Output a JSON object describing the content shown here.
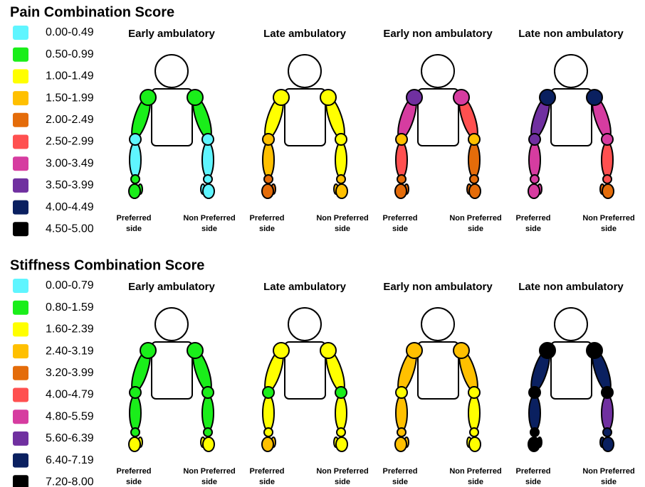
{
  "panels": [
    {
      "title": "Pain Combination Score",
      "legend": [
        {
          "color": "#5ff5ff",
          "label": "0.00-0.49"
        },
        {
          "color": "#1aee1a",
          "label": "0.50-0.99"
        },
        {
          "color": "#ffff00",
          "label": "1.00-1.49"
        },
        {
          "color": "#ffc000",
          "label": "1.50-1.99"
        },
        {
          "color": "#e46c0a",
          "label": "2.00-2.49"
        },
        {
          "color": "#ff5050",
          "label": "2.50-2.99"
        },
        {
          "color": "#d63ca0",
          "label": "3.00-3.49"
        },
        {
          "color": "#7030a0",
          "label": "3.50-3.99"
        },
        {
          "color": "#0a2060",
          "label": "4.00-4.49"
        },
        {
          "color": "#000000",
          "label": "4.50-5.00"
        }
      ],
      "figures": [
        {
          "title": "Early ambulatory",
          "preferred_label": [
            "Preferred",
            "side"
          ],
          "non_preferred_label": [
            "Non Preferred",
            "side"
          ],
          "preferred": {
            "shoulder": "#1aee1a",
            "upper_arm": "#1aee1a",
            "elbow": "#5ff5ff",
            "forearm": "#5ff5ff",
            "wrist": "#1aee1a",
            "hand": "#1aee1a"
          },
          "non_preferred": {
            "shoulder": "#1aee1a",
            "upper_arm": "#1aee1a",
            "elbow": "#5ff5ff",
            "forearm": "#5ff5ff",
            "wrist": "#5ff5ff",
            "hand": "#5ff5ff"
          }
        },
        {
          "title": "Late ambulatory",
          "preferred_label": [
            "Preferred",
            "side"
          ],
          "non_preferred_label": [
            "Non Preferred",
            "side"
          ],
          "preferred": {
            "shoulder": "#ffff00",
            "upper_arm": "#ffff00",
            "elbow": "#ffc000",
            "forearm": "#ffc000",
            "wrist": "#e46c0a",
            "hand": "#e46c0a"
          },
          "non_preferred": {
            "shoulder": "#ffff00",
            "upper_arm": "#ffff00",
            "elbow": "#ffff00",
            "forearm": "#ffff00",
            "wrist": "#ffc000",
            "hand": "#ffc000"
          }
        },
        {
          "title": "Early non ambulatory",
          "preferred_label": [
            "Preferred",
            "side"
          ],
          "non_preferred_label": [
            "Non Preferred",
            "side"
          ],
          "preferred": {
            "shoulder": "#7030a0",
            "upper_arm": "#d63ca0",
            "elbow": "#ffc000",
            "forearm": "#ff5050",
            "wrist": "#e46c0a",
            "hand": "#e46c0a"
          },
          "non_preferred": {
            "shoulder": "#d63ca0",
            "upper_arm": "#ff5050",
            "elbow": "#ffc000",
            "forearm": "#e46c0a",
            "wrist": "#e46c0a",
            "hand": "#e46c0a"
          }
        },
        {
          "title": "Late non ambulatory",
          "preferred_label": [
            "Preferred",
            "side"
          ],
          "non_preferred_label": [
            "Non Preferred",
            "side"
          ],
          "preferred": {
            "shoulder": "#0a2060",
            "upper_arm": "#7030a0",
            "elbow": "#7030a0",
            "forearm": "#d63ca0",
            "wrist": "#d63ca0",
            "hand": "#d63ca0"
          },
          "non_preferred": {
            "shoulder": "#0a2060",
            "upper_arm": "#d63ca0",
            "elbow": "#d63ca0",
            "forearm": "#ff5050",
            "wrist": "#ff5050",
            "hand": "#e46c0a"
          }
        }
      ]
    },
    {
      "title": "Stiffness Combination Score",
      "legend": [
        {
          "color": "#5ff5ff",
          "label": "0.00-0.79"
        },
        {
          "color": "#1aee1a",
          "label": "0.80-1.59"
        },
        {
          "color": "#ffff00",
          "label": "1.60-2.39"
        },
        {
          "color": "#ffc000",
          "label": "2.40-3.19"
        },
        {
          "color": "#e46c0a",
          "label": "3.20-3.99"
        },
        {
          "color": "#ff5050",
          "label": "4.00-4.79"
        },
        {
          "color": "#d63ca0",
          "label": "4.80-5.59"
        },
        {
          "color": "#7030a0",
          "label": "5.60-6.39"
        },
        {
          "color": "#0a2060",
          "label": "6.40-7.19"
        },
        {
          "color": "#000000",
          "label": "7.20-8.00"
        }
      ],
      "figures": [
        {
          "title": "Early ambulatory",
          "preferred_label": [
            "Preferred",
            "side"
          ],
          "non_preferred_label": [
            "Non Preferred",
            "side"
          ],
          "preferred": {
            "shoulder": "#1aee1a",
            "upper_arm": "#1aee1a",
            "elbow": "#1aee1a",
            "forearm": "#1aee1a",
            "wrist": "#1aee1a",
            "hand": "#ffff00"
          },
          "non_preferred": {
            "shoulder": "#1aee1a",
            "upper_arm": "#1aee1a",
            "elbow": "#1aee1a",
            "forearm": "#1aee1a",
            "wrist": "#1aee1a",
            "hand": "#ffff00"
          }
        },
        {
          "title": "Late ambulatory",
          "preferred_label": [
            "Preferred",
            "side"
          ],
          "non_preferred_label": [
            "Non Preferred",
            "side"
          ],
          "preferred": {
            "shoulder": "#ffff00",
            "upper_arm": "#ffff00",
            "elbow": "#1aee1a",
            "forearm": "#ffff00",
            "wrist": "#ffff00",
            "hand": "#ffc000"
          },
          "non_preferred": {
            "shoulder": "#ffff00",
            "upper_arm": "#ffff00",
            "elbow": "#1aee1a",
            "forearm": "#ffff00",
            "wrist": "#ffff00",
            "hand": "#ffff00"
          }
        },
        {
          "title": "Early non ambulatory",
          "preferred_label": [
            "Preferred",
            "side"
          ],
          "non_preferred_label": [
            "Non Preferred",
            "side"
          ],
          "preferred": {
            "shoulder": "#ffc000",
            "upper_arm": "#ffc000",
            "elbow": "#ffff00",
            "forearm": "#ffc000",
            "wrist": "#ffc000",
            "hand": "#ffc000"
          },
          "non_preferred": {
            "shoulder": "#ffc000",
            "upper_arm": "#ffc000",
            "elbow": "#ffff00",
            "forearm": "#ffff00",
            "wrist": "#ffff00",
            "hand": "#ffff00"
          }
        },
        {
          "title": "Late non ambulatory",
          "preferred_label": [
            "Preferred",
            "side"
          ],
          "non_preferred_label": [
            "Non Preferred",
            "side"
          ],
          "preferred": {
            "shoulder": "#000000",
            "upper_arm": "#0a2060",
            "elbow": "#000000",
            "forearm": "#0a2060",
            "wrist": "#000000",
            "hand": "#000000"
          },
          "non_preferred": {
            "shoulder": "#000000",
            "upper_arm": "#0a2060",
            "elbow": "#000000",
            "forearm": "#7030a0",
            "wrist": "#0a2060",
            "hand": "#0a2060"
          }
        }
      ]
    }
  ]
}
